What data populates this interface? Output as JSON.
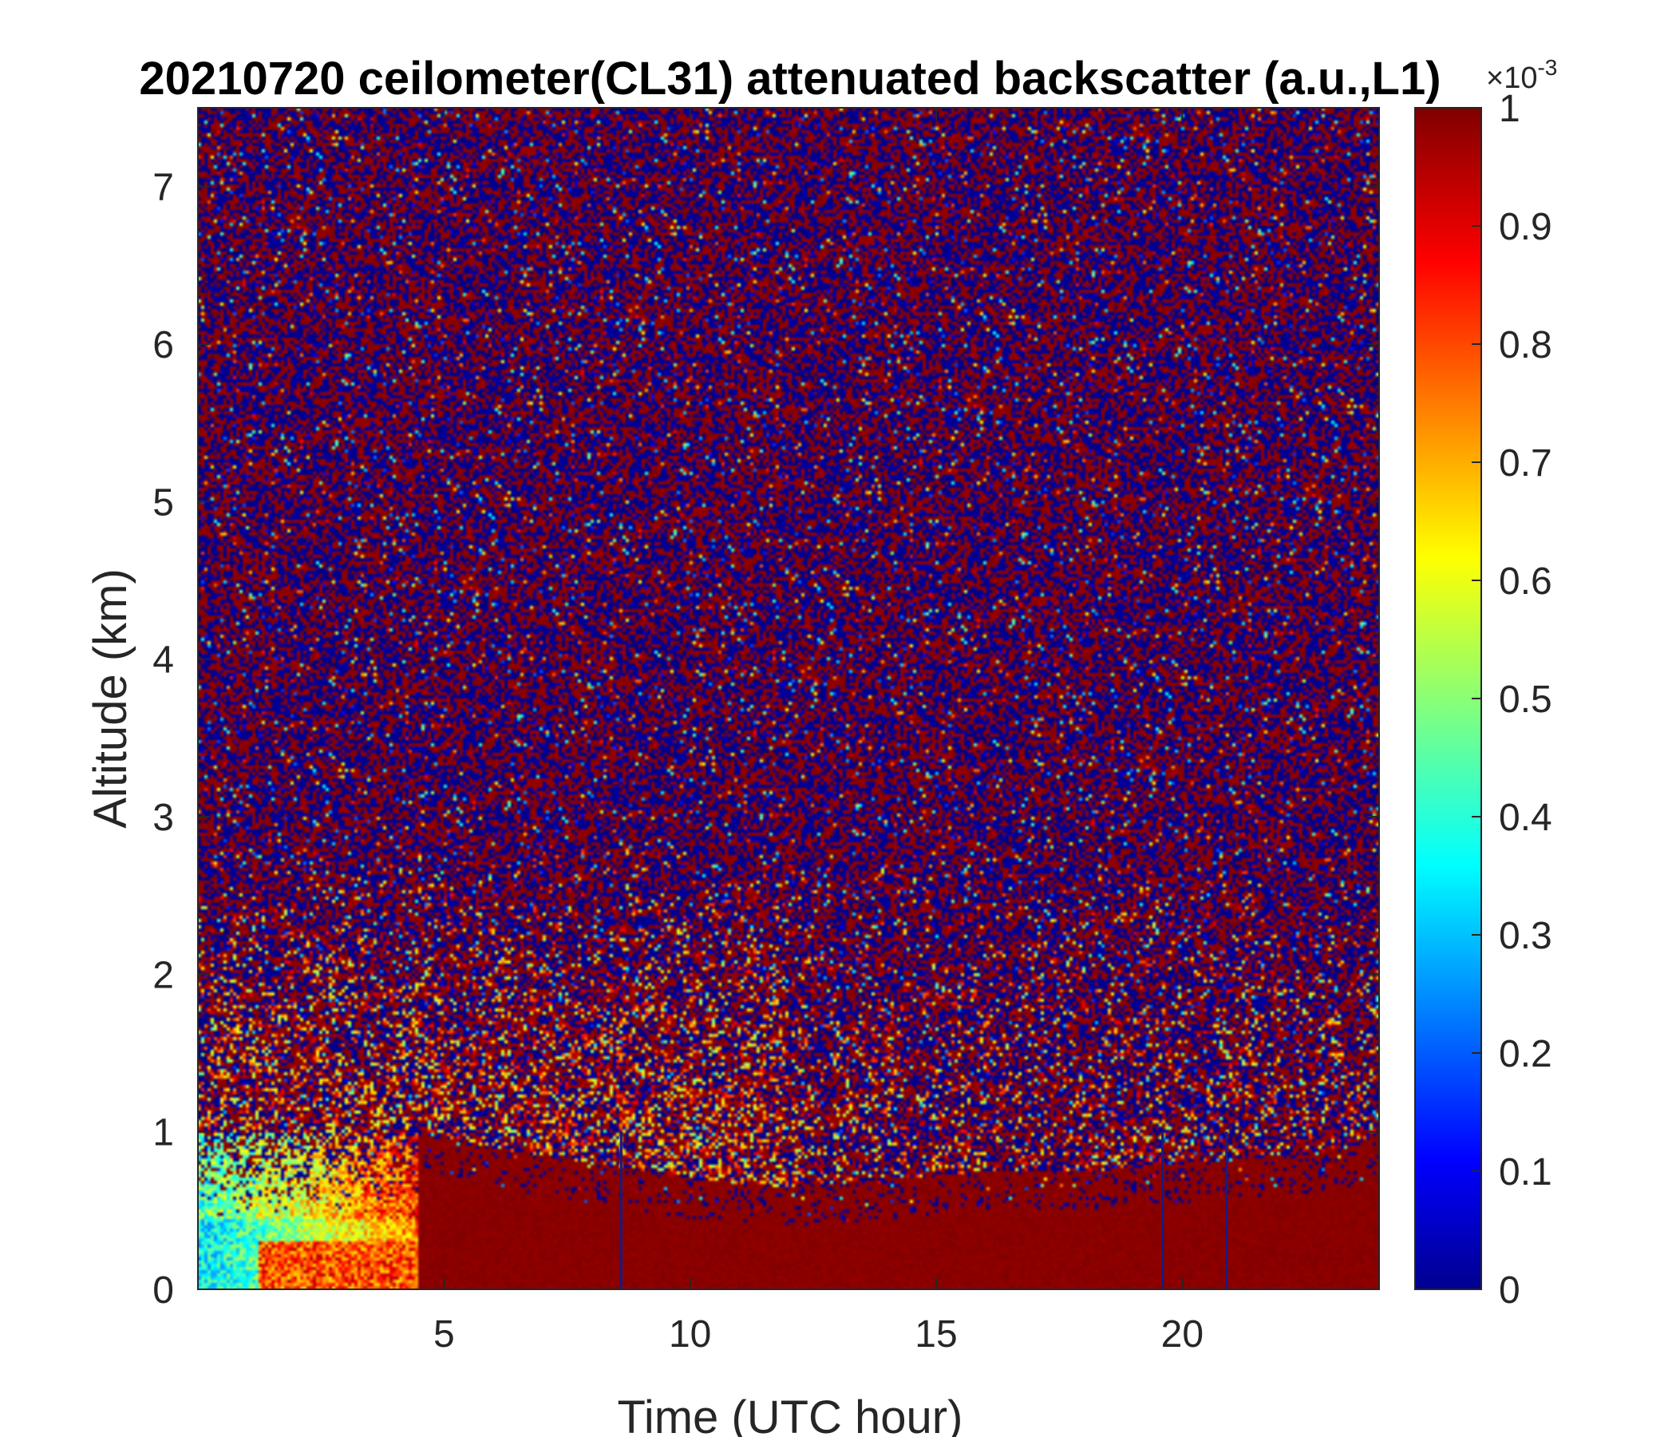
{
  "chart_data": {
    "type": "heatmap",
    "title": "20210720 ceilometer(CL31) attenuated backscatter (a.u.,L1)",
    "xlabel": "Time (UTC hour)",
    "ylabel": "Altitude (km)",
    "xlim": [
      0,
      24
    ],
    "ylim": [
      0,
      7.5
    ],
    "xticks": [
      5,
      10,
      15,
      20
    ],
    "yticks": [
      0,
      1,
      2,
      3,
      4,
      5,
      6,
      7
    ],
    "colorbar": {
      "colormap": "jet",
      "clim": [
        0,
        1
      ],
      "ticks": [
        0,
        0.1,
        0.2,
        0.3,
        0.4,
        0.5,
        0.6,
        0.7,
        0.8,
        0.9,
        1
      ],
      "exponent_label": "×10",
      "exponent": "-3"
    },
    "features": {
      "noisy_upper_region": "mixed dark red and dark blue speckle above ~1 km",
      "boundary_layer_top_km": [
        1.0,
        0.9,
        0.8,
        0.7,
        0.65,
        0.7,
        0.75,
        0.75,
        0.8,
        0.85,
        0.9,
        1.0
      ],
      "boundary_layer_hours": [
        4.5,
        6,
        8,
        10,
        12,
        14,
        16,
        18,
        20,
        22,
        23.5,
        24
      ],
      "early_morning_low_values": "cyan/yellow values below 1 km from 0 to ~4.5 h",
      "dark_vertical_lines_hours": [
        8.6,
        19.6,
        20.9
      ]
    }
  }
}
